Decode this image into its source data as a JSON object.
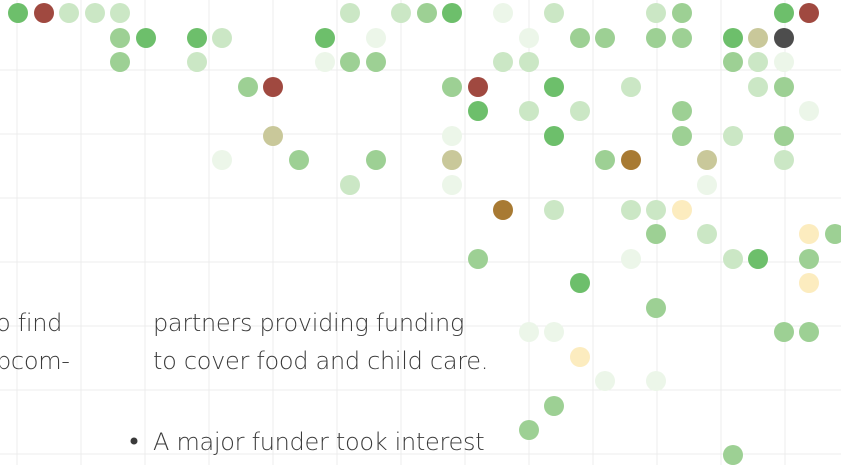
{
  "page": {
    "left_column": {
      "lines": [
        "o find",
        "pcom-"
      ]
    },
    "right_column": {
      "paragraph_lines": [
        "partners providing funding",
        "to cover food and child care."
      ],
      "bullet_item": "A major funder took interest"
    }
  }
}
